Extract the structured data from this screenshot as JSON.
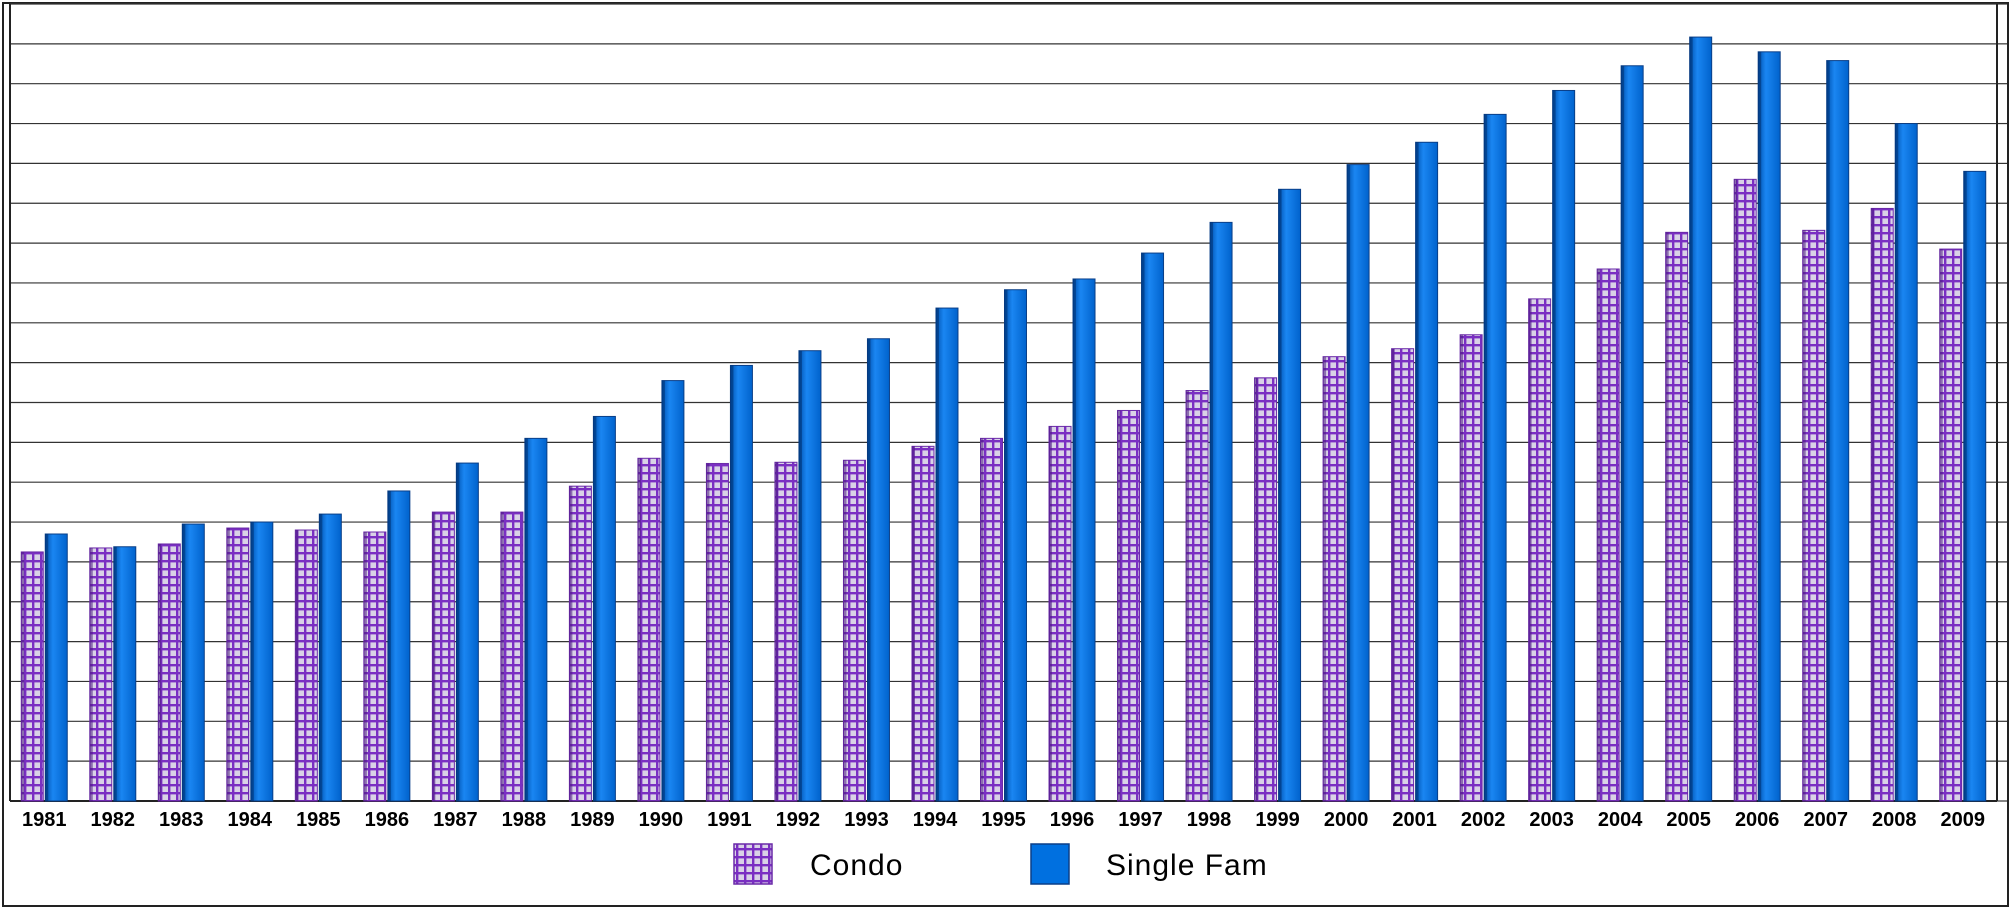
{
  "chart_data": {
    "type": "bar",
    "title": "",
    "xlabel": "",
    "ylabel": "",
    "ylim": [
      0,
      20
    ],
    "yticks_visible": false,
    "grid": true,
    "legend": "bottom-center",
    "categories": [
      "1981",
      "1982",
      "1983",
      "1984",
      "1985",
      "1986",
      "1987",
      "1988",
      "1989",
      "1990",
      "1991",
      "1992",
      "1993",
      "1994",
      "1995",
      "1996",
      "1997",
      "1998",
      "1999",
      "2000",
      "2001",
      "2002",
      "2003",
      "2004",
      "2005",
      "2006",
      "2007",
      "2008",
      "2009"
    ],
    "series": [
      {
        "name": "Condo",
        "pattern": "purple-grid",
        "color": "#7a2fc2",
        "values": [
          6.25,
          6.35,
          6.45,
          6.85,
          6.8,
          6.75,
          7.25,
          7.25,
          7.9,
          8.6,
          8.47,
          8.5,
          8.55,
          8.9,
          9.1,
          9.4,
          9.8,
          10.3,
          10.62,
          11.15,
          11.35,
          11.7,
          12.6,
          13.35,
          14.27,
          15.6,
          14.32,
          14.87,
          13.85
        ]
      },
      {
        "name": "Single Fam",
        "color": "#0070e0",
        "values": [
          6.7,
          6.38,
          6.95,
          7.0,
          7.2,
          7.78,
          8.48,
          9.1,
          9.65,
          10.55,
          10.93,
          11.3,
          11.6,
          12.37,
          12.83,
          13.1,
          13.75,
          14.52,
          15.35,
          15.97,
          16.53,
          17.23,
          17.83,
          18.45,
          19.17,
          18.8,
          18.58,
          17.0,
          15.8
        ]
      }
    ]
  }
}
